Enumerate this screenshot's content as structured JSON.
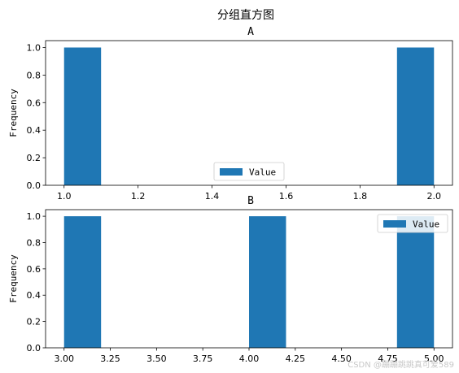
{
  "figure": {
    "suptitle": "分组直方图",
    "watermark": "CSDN @蹦蹦跳跳真可爱589"
  },
  "chart_data": [
    {
      "type": "bar",
      "title": "A",
      "ylabel": "Frequency",
      "xlim": [
        0.95,
        2.05
      ],
      "ylim": [
        0,
        1.05
      ],
      "xticks": [
        1.0,
        1.2,
        1.4,
        1.6,
        1.8,
        2.0
      ],
      "xtick_labels": [
        "1.0",
        "1.2",
        "1.4",
        "1.6",
        "1.8",
        "2.0"
      ],
      "yticks": [
        0.0,
        0.2,
        0.4,
        0.6,
        0.8,
        1.0
      ],
      "ytick_labels": [
        "0.0",
        "0.2",
        "0.4",
        "0.6",
        "0.8",
        "1.0"
      ],
      "bins": [
        {
          "x0": 1.0,
          "x1": 1.1,
          "count": 1
        },
        {
          "x0": 1.9,
          "x1": 2.0,
          "count": 1
        }
      ],
      "series": [
        {
          "name": "Value",
          "color": "#1f77b4"
        }
      ],
      "legend": {
        "placement": "lower-center",
        "label": "Value"
      },
      "grid": false
    },
    {
      "type": "bar",
      "title": "B",
      "ylabel": "Frequency",
      "xlim": [
        2.9,
        5.1
      ],
      "ylim": [
        0,
        1.05
      ],
      "xticks": [
        3.0,
        3.25,
        3.5,
        3.75,
        4.0,
        4.25,
        4.5,
        4.75,
        5.0
      ],
      "xtick_labels": [
        "3.00",
        "3.25",
        "3.50",
        "3.75",
        "4.00",
        "4.25",
        "4.50",
        "4.75",
        "5.00"
      ],
      "yticks": [
        0.0,
        0.2,
        0.4,
        0.6,
        0.8,
        1.0
      ],
      "ytick_labels": [
        "0.0",
        "0.2",
        "0.4",
        "0.6",
        "0.8",
        "1.0"
      ],
      "bins": [
        {
          "x0": 3.0,
          "x1": 3.2,
          "count": 1
        },
        {
          "x0": 4.0,
          "x1": 4.2,
          "count": 1
        },
        {
          "x0": 4.8,
          "x1": 5.0,
          "count": 1
        }
      ],
      "series": [
        {
          "name": "Value",
          "color": "#1f77b4"
        }
      ],
      "legend": {
        "placement": "upper-right",
        "label": "Value"
      },
      "grid": false
    }
  ]
}
